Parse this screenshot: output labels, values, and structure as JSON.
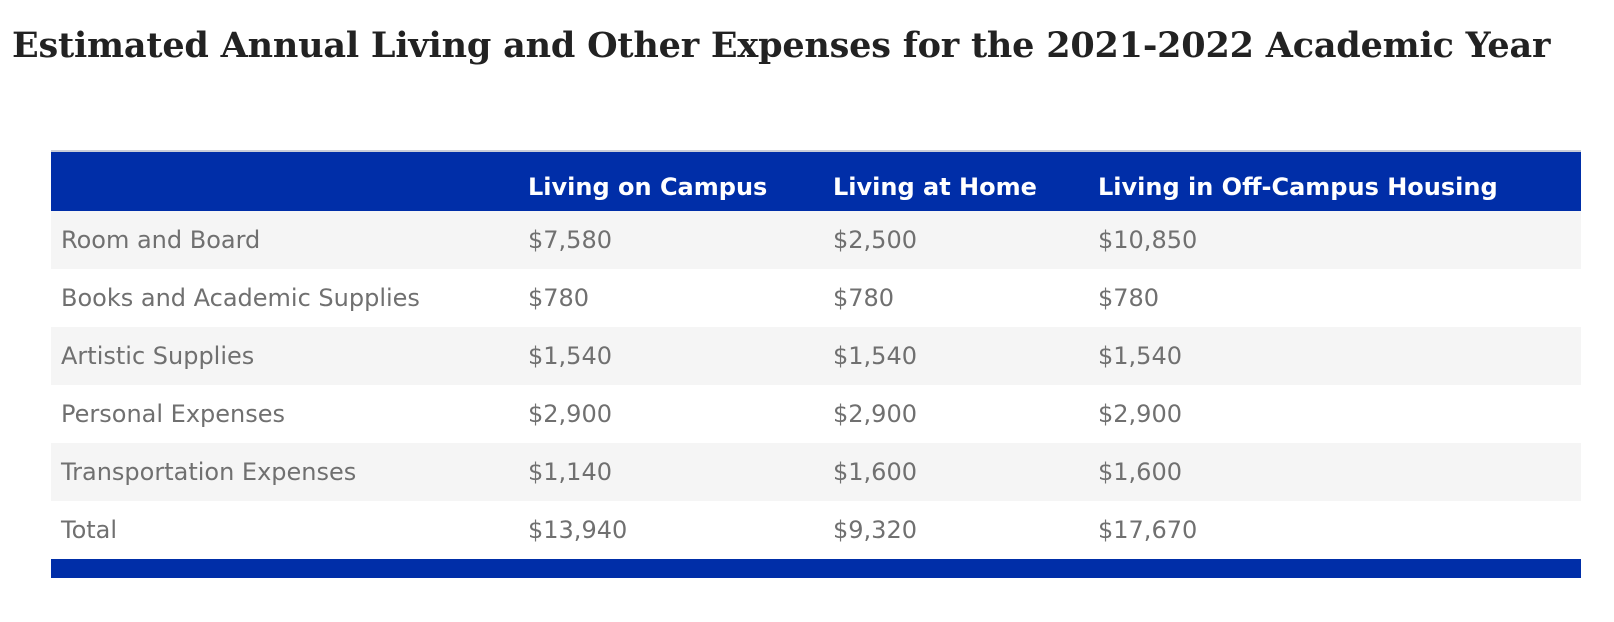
{
  "page": {
    "title": "Estimated Annual Living and Other Expenses for the 2021-2022 Academic Year"
  },
  "table": {
    "headers": [
      "",
      "Living on Campus",
      "Living at Home",
      "Living in Off-Campus Housing"
    ],
    "rows": [
      {
        "label": "Room and Board",
        "values": [
          "$7,580",
          "$2,500",
          "$10,850"
        ]
      },
      {
        "label": "Books and Academic Supplies",
        "values": [
          "$780",
          "$780",
          "$780"
        ]
      },
      {
        "label": "Artistic Supplies",
        "values": [
          "$1,540",
          "$1,540",
          "$1,540"
        ]
      },
      {
        "label": "Personal Expenses",
        "values": [
          "$2,900",
          "$2,900",
          "$2,900"
        ]
      },
      {
        "label": "Transportation Expenses",
        "values": [
          "$1,140",
          "$1,600",
          "$1,600"
        ]
      },
      {
        "label": "Total",
        "values": [
          "$13,940",
          "$9,320",
          "$17,670"
        ]
      }
    ]
  },
  "colors": {
    "header_background": "#002ea8",
    "header_text": "#ffffff",
    "body_text": "#707070",
    "stripe_background": "#f5f5f5",
    "title_text": "#222222"
  }
}
